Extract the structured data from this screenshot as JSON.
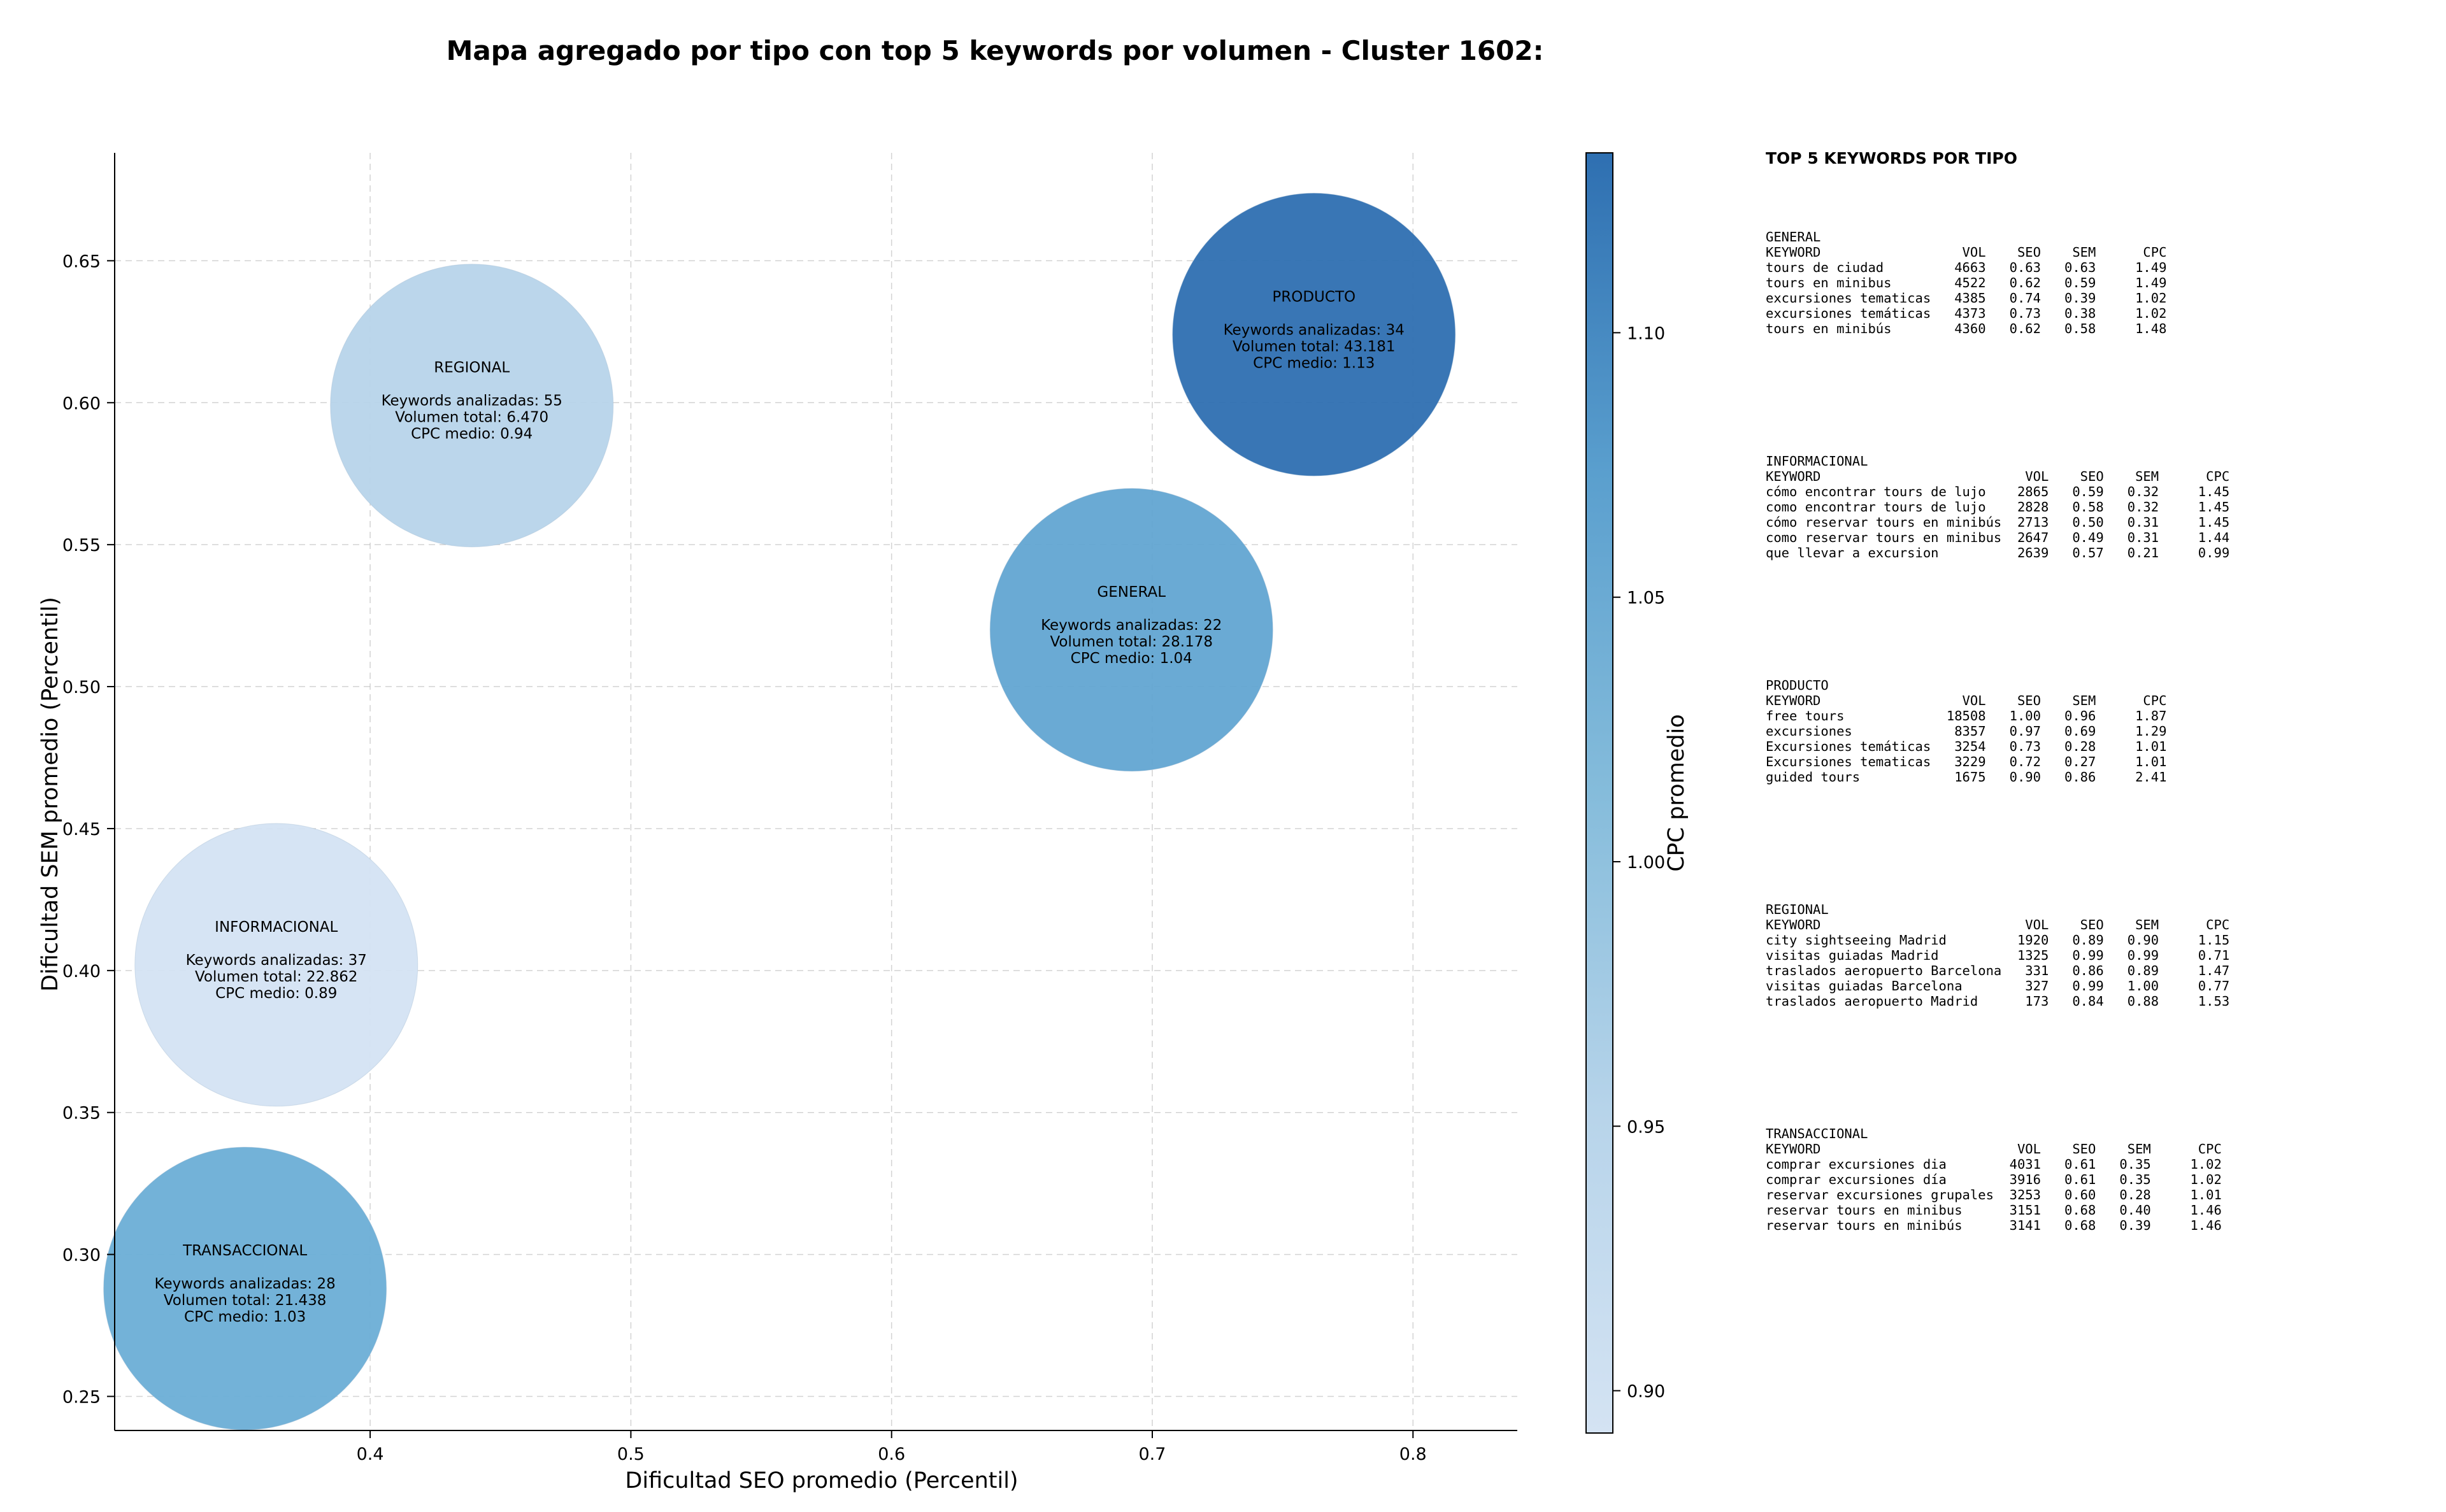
{
  "title": "Mapa agregado por tipo con top 5 keywords por volumen - Cluster 1602:",
  "chart_data": {
    "type": "scatter",
    "variant": "bubble",
    "title": "Mapa agregado por tipo con top 5 keywords por volumen - Cluster 1602:",
    "xlabel": "Dificultad SEO promedio (Percentil)",
    "ylabel": "Dificultad SEM promedio (Percentil)",
    "xlim": [
      0.302,
      0.84
    ],
    "ylim": [
      0.238,
      0.688
    ],
    "xticks": [
      0.4,
      0.5,
      0.6,
      0.7,
      0.8
    ],
    "yticks": [
      0.25,
      0.3,
      0.35,
      0.4,
      0.45,
      0.5,
      0.55,
      0.6,
      0.65
    ],
    "xtick_labels": [
      "0.4",
      "0.5",
      "0.6",
      "0.7",
      "0.8"
    ],
    "ytick_labels": [
      "0.25",
      "0.30",
      "0.35",
      "0.40",
      "0.45",
      "0.50",
      "0.55",
      "0.60",
      "0.65"
    ],
    "grid": true,
    "colorbar": {
      "label": "CPC promedio",
      "min": 0.892,
      "max": 1.134,
      "ticks": [
        0.9,
        0.95,
        1.0,
        1.05,
        1.1
      ],
      "tick_labels": [
        "0.90",
        "0.95",
        "1.00",
        "1.05",
        "1.10"
      ],
      "color_low": "#d4e3f3",
      "color_high": "#2e6fb1"
    },
    "points": [
      {
        "tipo": "PRODUCTO",
        "x": 0.762,
        "y": 0.624,
        "keywords": 34,
        "volumen": "43.181",
        "cpc": 1.13,
        "color": "#2e6fb1",
        "lines": [
          "PRODUCTO",
          "",
          "Keywords analizadas: 34",
          "Volumen total: 43.181",
          "CPC medio: 1.13"
        ]
      },
      {
        "tipo": "REGIONAL",
        "x": 0.439,
        "y": 0.599,
        "keywords": 55,
        "volumen": "6.470",
        "cpc": 0.94,
        "color": "#b7d4ea",
        "lines": [
          "REGIONAL",
          "",
          "Keywords analizadas: 55",
          "Volumen total: 6.470",
          "CPC medio: 0.94"
        ]
      },
      {
        "tipo": "GENERAL",
        "x": 0.692,
        "y": 0.52,
        "keywords": 22,
        "volumen": "28.178",
        "cpc": 1.04,
        "color": "#62a5d2",
        "lines": [
          "GENERAL",
          "",
          "Keywords analizadas: 22",
          "Volumen total: 28.178",
          "CPC medio: 1.04"
        ]
      },
      {
        "tipo": "INFORMACIONAL",
        "x": 0.364,
        "y": 0.402,
        "keywords": 37,
        "volumen": "22.862",
        "cpc": 0.89,
        "color": "#d4e3f3",
        "lines": [
          "INFORMACIONAL",
          "",
          "Keywords analizadas: 37",
          "Volumen total: 22.862",
          "CPC medio: 0.89"
        ]
      },
      {
        "tipo": "TRANSACCIONAL",
        "x": 0.352,
        "y": 0.288,
        "keywords": 28,
        "volumen": "21.438",
        "cpc": 1.03,
        "color": "#6baed6",
        "lines": [
          "TRANSACCIONAL",
          "",
          "Keywords analizadas: 28",
          "Volumen total: 21.438",
          "CPC medio: 1.03"
        ]
      }
    ]
  },
  "panel": {
    "title": "TOP 5 KEYWORDS POR TIPO",
    "blocks": [
      {
        "name": "GENERAL",
        "text": "GENERAL\nKEYWORD                  VOL    SEO    SEM      CPC\ntours de ciudad         4663   0.63   0.63     1.49\ntours en minibus        4522   0.62   0.59     1.49\nexcursiones tematicas   4385   0.74   0.39     1.02\nexcursiones temáticas   4373   0.73   0.38     1.02\ntours en minibús        4360   0.62   0.58     1.48"
      },
      {
        "name": "INFORMACIONAL",
        "text": "INFORMACIONAL\nKEYWORD                          VOL    SEO    SEM      CPC\ncómo encontrar tours de lujo    2865   0.59   0.32     1.45\ncomo encontrar tours de lujo    2828   0.58   0.32     1.45\ncómo reservar tours en minibús  2713   0.50   0.31     1.45\ncomo reservar tours en minibus  2647   0.49   0.31     1.44\nque llevar a excursion          2639   0.57   0.21     0.99"
      },
      {
        "name": "PRODUCTO",
        "text": "PRODUCTO\nKEYWORD                  VOL    SEO    SEM      CPC\nfree tours             18508   1.00   0.96     1.87\nexcursiones             8357   0.97   0.69     1.29\nExcursiones temáticas   3254   0.73   0.28     1.01\nExcursiones tematicas   3229   0.72   0.27     1.01\nguided tours            1675   0.90   0.86     2.41"
      },
      {
        "name": "REGIONAL",
        "text": "REGIONAL\nKEYWORD                          VOL    SEO    SEM      CPC\ncity sightseeing Madrid         1920   0.89   0.90     1.15\nvisitas guiadas Madrid          1325   0.99   0.99     0.71\ntraslados aeropuerto Barcelona   331   0.86   0.89     1.47\nvisitas guiadas Barcelona        327   0.99   1.00     0.77\ntraslados aeropuerto Madrid      173   0.84   0.88     1.53"
      },
      {
        "name": "TRANSACCIONAL",
        "text": "TRANSACCIONAL\nKEYWORD                         VOL    SEO    SEM      CPC\ncomprar excursiones dia        4031   0.61   0.35     1.02\ncomprar excursiones día        3916   0.61   0.35     1.02\nreservar excursiones grupales  3253   0.60   0.28     1.01\nreservar tours en minibus      3151   0.68   0.40     1.46\nreservar tours en minibús      3141   0.68   0.39     1.46"
      }
    ]
  }
}
